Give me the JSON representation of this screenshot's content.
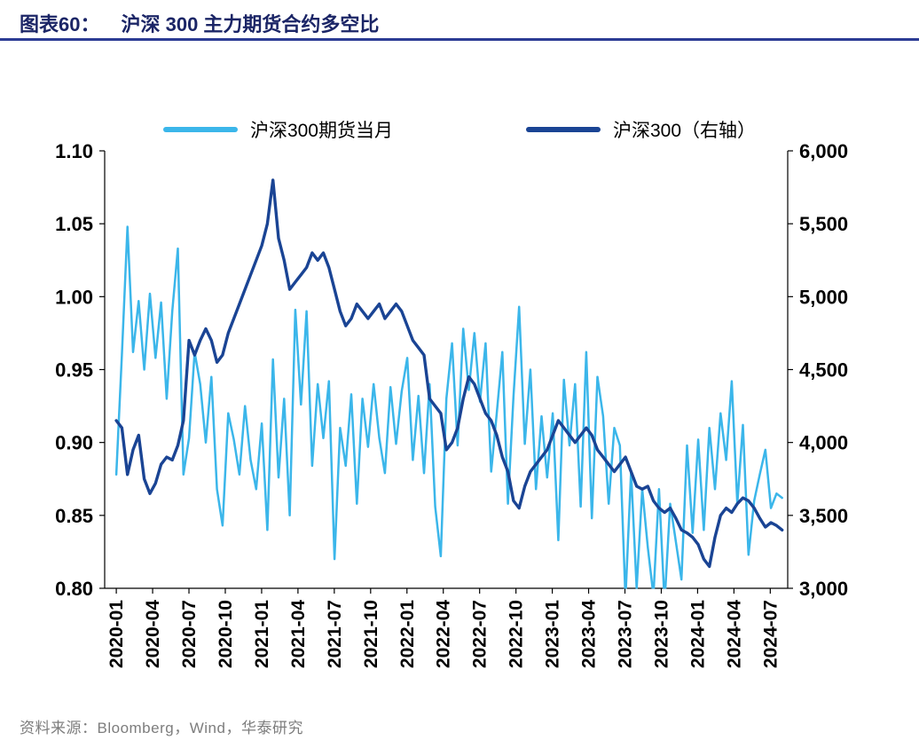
{
  "page": {
    "title_prefix": "图表60：",
    "title": "沪深 300 主力期货合约多空比",
    "source": "资料来源：Bloomberg，Wind，华泰研究"
  },
  "colors": {
    "title_text": "#1b2566",
    "title_rule": "#2c3c94",
    "series_futures": "#3bb6ea",
    "series_index": "#1a4494",
    "axis": "#000000",
    "source_text": "#7d7d7d"
  },
  "chart_data": {
    "type": "line",
    "title": "沪深 300 主力期货合约多空比",
    "grid": false,
    "legend_position": "top-center",
    "legend": [
      {
        "name": "沪深300期货当月",
        "color": "#3bb6ea",
        "axis": "left"
      },
      {
        "name": "沪深300（右轴）",
        "color": "#1a4494",
        "axis": "right"
      }
    ],
    "x_axis": {
      "start": 2020.0,
      "step": 0.0385,
      "domain": [
        2019.92,
        2024.62
      ],
      "ticks": [
        {
          "value": 2020.0,
          "label": "2020-01"
        },
        {
          "value": 2020.25,
          "label": "2020-04"
        },
        {
          "value": 2020.5,
          "label": "2020-07"
        },
        {
          "value": 2020.75,
          "label": "2020-10"
        },
        {
          "value": 2021.0,
          "label": "2021-01"
        },
        {
          "value": 2021.25,
          "label": "2021-04"
        },
        {
          "value": 2021.5,
          "label": "2021-07"
        },
        {
          "value": 2021.75,
          "label": "2021-10"
        },
        {
          "value": 2022.0,
          "label": "2022-01"
        },
        {
          "value": 2022.25,
          "label": "2022-04"
        },
        {
          "value": 2022.5,
          "label": "2022-07"
        },
        {
          "value": 2022.75,
          "label": "2022-10"
        },
        {
          "value": 2023.0,
          "label": "2023-01"
        },
        {
          "value": 2023.25,
          "label": "2023-04"
        },
        {
          "value": 2023.5,
          "label": "2023-07"
        },
        {
          "value": 2023.75,
          "label": "2023-10"
        },
        {
          "value": 2024.0,
          "label": "2024-01"
        },
        {
          "value": 2024.25,
          "label": "2024-04"
        },
        {
          "value": 2024.5,
          "label": "2024-07"
        }
      ]
    },
    "left_axis": {
      "min": 0.8,
      "max": 1.1,
      "ticks": [
        {
          "value": 0.8,
          "label": "0.80"
        },
        {
          "value": 0.85,
          "label": "0.85"
        },
        {
          "value": 0.9,
          "label": "0.90"
        },
        {
          "value": 0.95,
          "label": "0.95"
        },
        {
          "value": 1.0,
          "label": "1.00"
        },
        {
          "value": 1.05,
          "label": "1.05"
        },
        {
          "value": 1.1,
          "label": "1.10"
        }
      ]
    },
    "right_axis": {
      "min": 3000,
      "max": 6000,
      "ticks": [
        {
          "value": 3000,
          "label": "3,000"
        },
        {
          "value": 3500,
          "label": "3,500"
        },
        {
          "value": 4000,
          "label": "4,000"
        },
        {
          "value": 4500,
          "label": "4,500"
        },
        {
          "value": 5000,
          "label": "5,000"
        },
        {
          "value": 5500,
          "label": "5,500"
        },
        {
          "value": 6000,
          "label": "6,000"
        }
      ]
    },
    "series": [
      {
        "name": "沪深300期货当月",
        "axis": "left",
        "color": "#3bb6ea",
        "width": 2.5,
        "values": [
          0.878,
          0.96,
          1.048,
          0.962,
          0.997,
          0.95,
          1.002,
          0.958,
          0.996,
          0.93,
          0.99,
          1.033,
          0.878,
          0.903,
          0.962,
          0.94,
          0.9,
          0.945,
          0.868,
          0.843,
          0.92,
          0.902,
          0.878,
          0.925,
          0.888,
          0.868,
          0.913,
          0.84,
          0.957,
          0.876,
          0.93,
          0.85,
          0.991,
          0.926,
          0.99,
          0.884,
          0.94,
          0.903,
          0.942,
          0.82,
          0.91,
          0.884,
          0.933,
          0.858,
          0.93,
          0.897,
          0.94,
          0.903,
          0.879,
          0.938,
          0.899,
          0.935,
          0.958,
          0.888,
          0.932,
          0.879,
          0.94,
          0.856,
          0.822,
          0.93,
          0.968,
          0.898,
          0.978,
          0.936,
          0.975,
          0.928,
          0.968,
          0.88,
          0.92,
          0.962,
          0.858,
          0.932,
          0.993,
          0.899,
          0.95,
          0.868,
          0.918,
          0.876,
          0.92,
          0.833,
          0.943,
          0.898,
          0.94,
          0.856,
          0.962,
          0.848,
          0.945,
          0.918,
          0.858,
          0.91,
          0.898,
          0.793,
          0.88,
          0.8,
          0.868,
          0.828,
          0.795,
          0.868,
          0.79,
          0.858,
          0.832,
          0.806,
          0.898,
          0.838,
          0.902,
          0.84,
          0.91,
          0.868,
          0.92,
          0.888,
          0.942,
          0.858,
          0.912,
          0.823,
          0.86,
          0.878,
          0.895,
          0.855,
          0.865,
          0.862
        ]
      },
      {
        "name": "沪深300（右轴）",
        "axis": "right",
        "color": "#1a4494",
        "width": 3.4,
        "values": [
          4150,
          4100,
          3780,
          3950,
          4050,
          3750,
          3650,
          3720,
          3850,
          3900,
          3880,
          3980,
          4150,
          4700,
          4600,
          4700,
          4780,
          4700,
          4550,
          4600,
          4750,
          4850,
          4950,
          5050,
          5150,
          5250,
          5350,
          5500,
          5800,
          5400,
          5250,
          5050,
          5100,
          5150,
          5200,
          5300,
          5250,
          5300,
          5200,
          5050,
          4900,
          4800,
          4850,
          4950,
          4900,
          4850,
          4900,
          4950,
          4850,
          4900,
          4950,
          4900,
          4800,
          4700,
          4650,
          4600,
          4300,
          4250,
          4200,
          3950,
          4000,
          4100,
          4300,
          4450,
          4400,
          4300,
          4200,
          4150,
          4050,
          3900,
          3800,
          3600,
          3550,
          3700,
          3800,
          3850,
          3900,
          3950,
          4050,
          4150,
          4100,
          4050,
          4000,
          4050,
          4100,
          4050,
          3950,
          3900,
          3850,
          3800,
          3850,
          3900,
          3800,
          3700,
          3680,
          3700,
          3600,
          3550,
          3520,
          3550,
          3480,
          3400,
          3380,
          3350,
          3300,
          3200,
          3150,
          3350,
          3500,
          3550,
          3520,
          3580,
          3620,
          3600,
          3550,
          3480,
          3420,
          3450,
          3430,
          3400
        ]
      }
    ]
  }
}
